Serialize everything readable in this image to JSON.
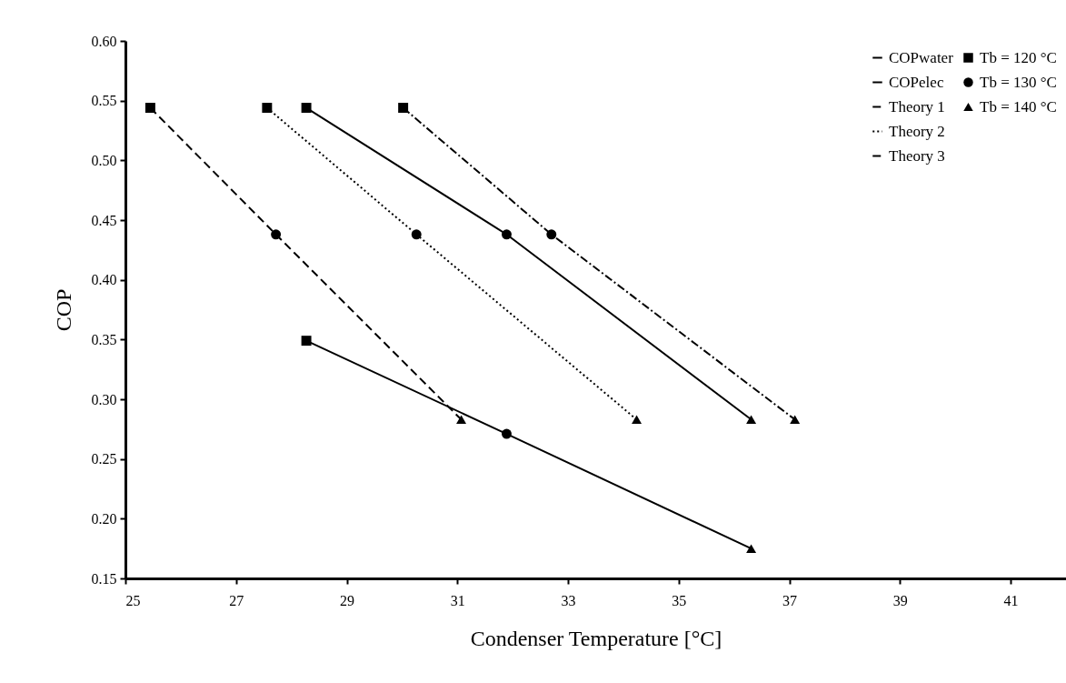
{
  "chart_data": {
    "type": "line",
    "xlabel": "Condenser Temperature [°C]",
    "ylabel": "COP",
    "xlim": [
      25,
      42
    ],
    "xticks": [
      25,
      27,
      29,
      31,
      33,
      35,
      37,
      39,
      41
    ],
    "ylim": [
      0.15,
      0.6
    ],
    "yticks": [
      {
        "value": 0.15,
        "label": "0.15"
      },
      {
        "value": 0.2,
        "label": "0.20"
      },
      {
        "value": 0.25,
        "label": "0.25"
      },
      {
        "value": 0.3,
        "label": "0.30"
      },
      {
        "value": 0.35,
        "label": "0.35"
      },
      {
        "value": 0.4,
        "label": "0.40"
      },
      {
        "value": 0.45,
        "label": "0.45"
      },
      {
        "value": 0.5,
        "label": "0.50"
      },
      {
        "value": 0.55,
        "label": "0.55"
      },
      {
        "value": 0.6,
        "label": "0.60"
      }
    ],
    "grid": false,
    "legend": "top right",
    "series": [
      {
        "name": "COPwater",
        "color": "#000000",
        "line_style": "solid",
        "x": [
          28.27,
          31.89,
          36.31
        ],
        "values": [
          0.544,
          0.438,
          0.283
        ]
      },
      {
        "name": "COPelec",
        "color": "#000000",
        "line_style": "solid",
        "x": [
          28.27,
          31.89,
          36.31
        ],
        "values": [
          0.349,
          0.271,
          0.175
        ]
      },
      {
        "name": "Theory 1",
        "color": "#000000",
        "line_style": "dashdot",
        "x": [
          30.02,
          32.7,
          37.1
        ],
        "values": [
          0.544,
          0.438,
          0.283
        ]
      },
      {
        "name": "Theory 2",
        "color": "#000000",
        "line_style": "dotted",
        "x": [
          27.56,
          30.26,
          34.24
        ],
        "values": [
          0.544,
          0.438,
          0.283
        ]
      },
      {
        "name": "Theory 3",
        "color": "#000000",
        "line_style": "dashed",
        "x": [
          25.45,
          27.72,
          31.07
        ],
        "values": [
          0.544,
          0.438,
          0.283
        ]
      },
      {
        "name": "Tb = 120 °C",
        "type": "scatter",
        "color": "#000000",
        "marker": "square",
        "x": [
          25.45,
          27.56,
          28.27,
          30.02,
          28.27
        ],
        "values": [
          0.544,
          0.544,
          0.544,
          0.544,
          0.349
        ]
      },
      {
        "name": "Tb = 130 °C",
        "type": "scatter",
        "color": "#000000",
        "marker": "circle",
        "x": [
          27.72,
          30.26,
          31.89,
          32.7,
          31.89
        ],
        "values": [
          0.438,
          0.438,
          0.438,
          0.438,
          0.271
        ]
      },
      {
        "name": "Tb = 140 °C",
        "type": "scatter",
        "color": "#000000",
        "marker": "triangle",
        "x": [
          31.07,
          34.24,
          36.31,
          37.1,
          36.31
        ],
        "values": [
          0.283,
          0.283,
          0.283,
          0.283,
          0.175
        ]
      }
    ]
  }
}
